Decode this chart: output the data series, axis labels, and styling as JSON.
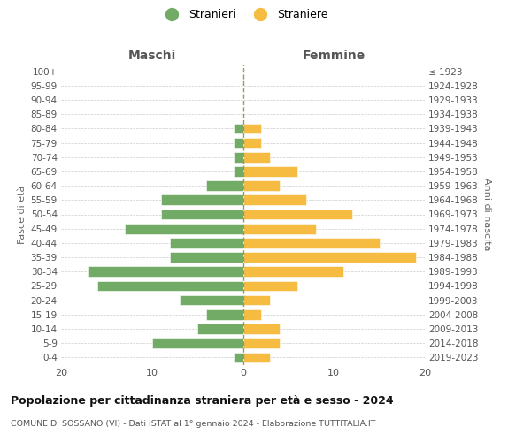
{
  "age_groups": [
    "100+",
    "95-99",
    "90-94",
    "85-89",
    "80-84",
    "75-79",
    "70-74",
    "65-69",
    "60-64",
    "55-59",
    "50-54",
    "45-49",
    "40-44",
    "35-39",
    "30-34",
    "25-29",
    "20-24",
    "15-19",
    "10-14",
    "5-9",
    "0-4"
  ],
  "birth_years": [
    "≤ 1923",
    "1924-1928",
    "1929-1933",
    "1934-1938",
    "1939-1943",
    "1944-1948",
    "1949-1953",
    "1954-1958",
    "1959-1963",
    "1964-1968",
    "1969-1973",
    "1974-1978",
    "1979-1983",
    "1984-1988",
    "1989-1993",
    "1994-1998",
    "1999-2003",
    "2004-2008",
    "2009-2013",
    "2014-2018",
    "2019-2023"
  ],
  "males": [
    0,
    0,
    0,
    0,
    1,
    1,
    1,
    1,
    4,
    9,
    9,
    13,
    8,
    8,
    17,
    16,
    7,
    4,
    5,
    10,
    1
  ],
  "females": [
    0,
    0,
    0,
    0,
    2,
    2,
    3,
    6,
    4,
    7,
    12,
    8,
    15,
    19,
    11,
    6,
    3,
    2,
    4,
    4,
    3
  ],
  "male_color": "#72ab66",
  "female_color": "#f6bc42",
  "grid_color": "#cccccc",
  "title": "Popolazione per cittadinanza straniera per età e sesso - 2024",
  "subtitle": "COMUNE DI SOSSANO (VI) - Dati ISTAT al 1° gennaio 2024 - Elaborazione TUTTITALIA.IT",
  "legend_male": "Stranieri",
  "legend_female": "Straniere",
  "label_maschi": "Maschi",
  "label_femmine": "Femmine",
  "ylabel_left": "Fasce di età",
  "ylabel_right": "Anni di nascita",
  "xlim": 20,
  "center_line_color": "#999966"
}
